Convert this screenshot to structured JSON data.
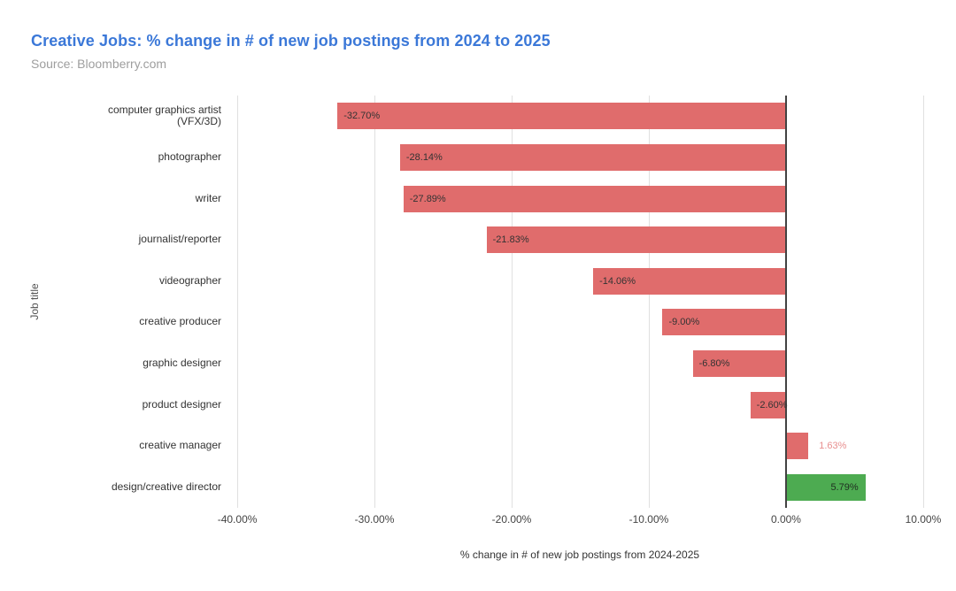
{
  "title": {
    "text": "Creative Jobs: % change in # of new job postings from 2024 to 2025",
    "color": "#3b78d8"
  },
  "subtitle": {
    "text": "Source: Bloomberry.com",
    "color": "#9e9e9e"
  },
  "chart_data": {
    "type": "bar",
    "orientation": "horizontal",
    "title": "Creative Jobs: % change in # of new job postings from 2024 to 2025",
    "xlabel": "% change in # of new job postings from 2024-2025",
    "ylabel": "Job title",
    "xlim": [
      -40.65,
      10.65
    ],
    "grid": "vertical",
    "x_tick_labels": [
      "-40.00%",
      "-30.00%",
      "-20.00%",
      "-10.00%",
      "0.00%",
      "10.00%"
    ],
    "x_tick_values": [
      -40,
      -30,
      -20,
      -10,
      0,
      10
    ],
    "colors": {
      "negative_bar": "#e06c6c",
      "positive_highlight_bar": "#4dab51",
      "inside_label": "#333333",
      "gridline": "#e0e0e0",
      "zero_axis": "#424242"
    },
    "bars": [
      {
        "category": "computer graphics artist (VFX/3D)",
        "category_lines": [
          "computer graphics artist",
          "(VFX/3D)"
        ],
        "value": -32.7,
        "label": "-32.70%",
        "color": "#e06c6c",
        "label_placement": "inside-start",
        "label_color": "#333333"
      },
      {
        "category": "photographer",
        "category_lines": [
          "photographer"
        ],
        "value": -28.14,
        "label": "-28.14%",
        "color": "#e06c6c",
        "label_placement": "inside-start",
        "label_color": "#333333"
      },
      {
        "category": "writer",
        "category_lines": [
          "writer"
        ],
        "value": -27.89,
        "label": "-27.89%",
        "color": "#e06c6c",
        "label_placement": "inside-start",
        "label_color": "#333333"
      },
      {
        "category": "journalist/reporter",
        "category_lines": [
          "journalist/reporter"
        ],
        "value": -21.83,
        "label": "-21.83%",
        "color": "#e06c6c",
        "label_placement": "inside-start",
        "label_color": "#333333"
      },
      {
        "category": "videographer",
        "category_lines": [
          "videographer"
        ],
        "value": -14.06,
        "label": "-14.06%",
        "color": "#e06c6c",
        "label_placement": "inside-start",
        "label_color": "#333333"
      },
      {
        "category": "creative producer",
        "category_lines": [
          "creative producer"
        ],
        "value": -9.0,
        "label": "-9.00%",
        "color": "#e06c6c",
        "label_placement": "inside-start",
        "label_color": "#333333"
      },
      {
        "category": "graphic designer",
        "category_lines": [
          "graphic designer"
        ],
        "value": -6.8,
        "label": "-6.80%",
        "color": "#e06c6c",
        "label_placement": "inside-start",
        "label_color": "#333333"
      },
      {
        "category": "product designer",
        "category_lines": [
          "product designer"
        ],
        "value": -2.6,
        "label": "-2.60%",
        "color": "#e06c6c",
        "label_placement": "inside-start",
        "label_color": "#333333"
      },
      {
        "category": "creative manager",
        "category_lines": [
          "creative manager"
        ],
        "value": 1.63,
        "label": "1.63%",
        "color": "#e06c6c",
        "label_placement": "outside-end",
        "label_color": "#e88f8f"
      },
      {
        "category": "design/creative director",
        "category_lines": [
          "design/creative director"
        ],
        "value": 5.79,
        "label": "5.79%",
        "color": "#4dab51",
        "label_placement": "inside-end",
        "label_color": "#1f2d20"
      }
    ]
  }
}
